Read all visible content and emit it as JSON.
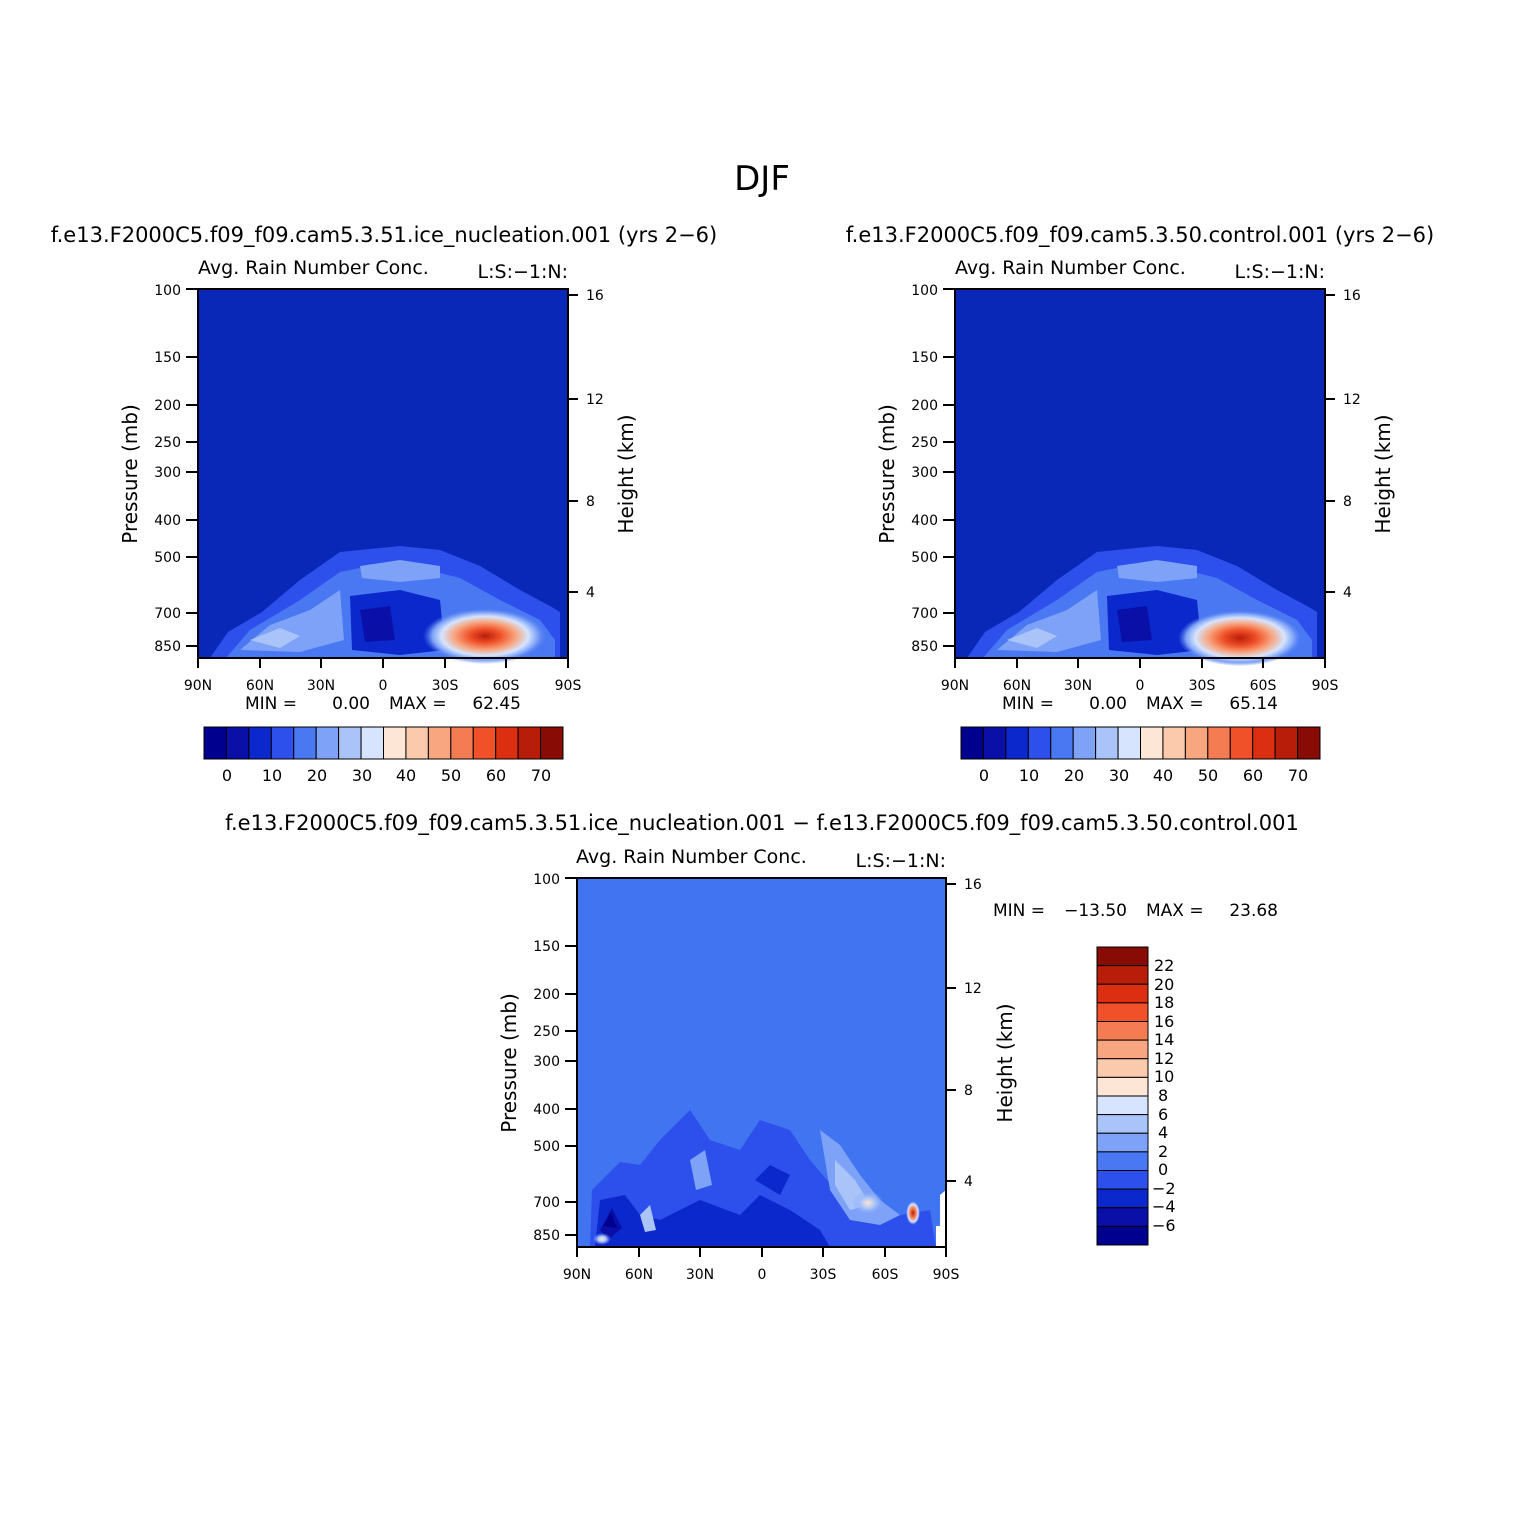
{
  "figure": {
    "title": "DJF"
  },
  "colors": {
    "ctl_levels": [
      "#00008f",
      "#0a0fa8",
      "#0a28cc",
      "#2d50ec",
      "#4a78f2",
      "#7da2f7",
      "#aac4fa",
      "#d6e4fd",
      "#fde6d6",
      "#fbc9ac",
      "#f8a680",
      "#f57c52",
      "#f05128",
      "#dc2e10",
      "#b81d0a",
      "#890b05"
    ],
    "diff_levels": [
      "#00008f",
      "#0a0fa8",
      "#0a28cc",
      "#2d50ec",
      "#4a78f2",
      "#7da2f7",
      "#aac4fa",
      "#d6e4fd",
      "#fde6d6",
      "#fbc9ac",
      "#f8a680",
      "#f57c52",
      "#f05128",
      "#dc2e10",
      "#b81d0a",
      "#890b05"
    ],
    "ctl_background": "#0a28b8",
    "diff_background": "#4174f0"
  },
  "chart_data": [
    {
      "type": "heatmap",
      "panel": "test",
      "case_title": "f.e13.F2000C5.f09_f09.cam5.3.51.ice_nucleation.001 (yrs 2−6)",
      "left_title": "Avg. Rain Number Conc.",
      "right_title": "L:S:−1:N:",
      "ylabel": "Pressure (mb)",
      "ylabel_right": "Height (km)",
      "x_ticks": [
        "90N",
        "60N",
        "30N",
        "0",
        "30S",
        "60S",
        "90S"
      ],
      "y_ticks": [
        "100",
        "150",
        "200",
        "250",
        "300",
        "400",
        "500",
        "700",
        "850"
      ],
      "y_ticks_right": [
        "16",
        "12",
        "8",
        "4"
      ],
      "stats": {
        "min_label": "MIN =",
        "min": "0.00",
        "max_label": "MAX =",
        "max": "62.45"
      },
      "colorbar": {
        "orientation": "horizontal",
        "labels": [
          "0",
          "10",
          "20",
          "30",
          "40",
          "50",
          "60",
          "70"
        ]
      },
      "peak": {
        "lat": -42,
        "pressure": 830,
        "value": 62.45
      }
    },
    {
      "type": "heatmap",
      "panel": "control",
      "case_title": "f.e13.F2000C5.f09_f09.cam5.3.50.control.001 (yrs 2−6)",
      "left_title": "Avg. Rain Number Conc.",
      "right_title": "L:S:−1:N:",
      "ylabel": "Pressure (mb)",
      "ylabel_right": "Height (km)",
      "x_ticks": [
        "90N",
        "60N",
        "30N",
        "0",
        "30S",
        "60S",
        "90S"
      ],
      "y_ticks": [
        "100",
        "150",
        "200",
        "250",
        "300",
        "400",
        "500",
        "700",
        "850"
      ],
      "y_ticks_right": [
        "16",
        "12",
        "8",
        "4"
      ],
      "stats": {
        "min_label": "MIN =",
        "min": "0.00",
        "max_label": "MAX =",
        "max": "65.14"
      },
      "colorbar": {
        "orientation": "horizontal",
        "labels": [
          "0",
          "10",
          "20",
          "30",
          "40",
          "50",
          "60",
          "70"
        ]
      },
      "peak": {
        "lat": -42,
        "pressure": 830,
        "value": 65.14
      }
    },
    {
      "type": "heatmap",
      "panel": "difference",
      "case_title": "f.e13.F2000C5.f09_f09.cam5.3.51.ice_nucleation.001 − f.e13.F2000C5.f09_f09.cam5.3.50.control.001",
      "left_title": "Avg. Rain Number Conc.",
      "right_title": "L:S:−1:N:",
      "ylabel": "Pressure (mb)",
      "ylabel_right": "Height (km)",
      "x_ticks": [
        "90N",
        "60N",
        "30N",
        "0",
        "30S",
        "60S",
        "90S"
      ],
      "y_ticks": [
        "100",
        "150",
        "200",
        "250",
        "300",
        "400",
        "500",
        "700",
        "850"
      ],
      "y_ticks_right": [
        "16",
        "12",
        "8",
        "4"
      ],
      "stats": {
        "min_label": "MIN =",
        "min": "−13.50",
        "max_label": "MAX =",
        "max": "23.68"
      },
      "colorbar": {
        "orientation": "vertical",
        "labels": [
          "22",
          "20",
          "18",
          "16",
          "14",
          "12",
          "10",
          "8",
          "6",
          "4",
          "2",
          "0",
          "−2",
          "−4",
          "−6"
        ]
      },
      "peak": {
        "lat": -68,
        "pressure": 760,
        "value": 23.68
      }
    }
  ]
}
